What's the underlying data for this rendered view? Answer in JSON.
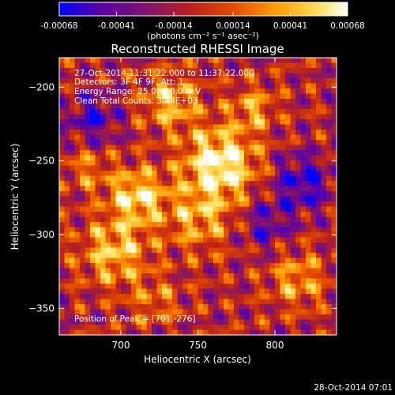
{
  "chart_data": {
    "type": "heatmap",
    "title": "Reconstructed RHESSI Image",
    "xlabel": "Heliocentric X (arcsec)",
    "ylabel": "Heliocentric Y (arcsec)",
    "xlim": [
      660,
      840
    ],
    "ylim": [
      -368,
      -180
    ],
    "xticks": [
      700,
      750,
      800
    ],
    "yticks": [
      -200,
      -250,
      -300,
      -350
    ],
    "colorbar": {
      "range": [
        -0.00068,
        0.00068
      ],
      "tick_values": [
        -0.00068,
        -0.00041,
        -0.00014,
        0.00014,
        0.00041,
        0.00068
      ],
      "tick_labels": [
        "-0.00068",
        "-0.00041",
        "-0.00014",
        "0.00014",
        "0.00041",
        "0.00068"
      ],
      "units": "(photons cm⁻² s⁻¹ asec⁻²)",
      "colormap": [
        "#0000ff",
        "#5a00a8",
        "#7f1470",
        "#b82020",
        "#e24a00",
        "#ff9a00",
        "#ffe060",
        "#ffffff"
      ]
    },
    "annotations": [
      "27-Oct-2014 11:31:22.000 to 11:37:22.000",
      "Detectors: 3F 4F 9F, Att: 1",
      "Energy Range: 25.0 - 50.0 keV",
      "Clean    Total Counts: 3.44E+03",
      "Position of Peak = [701,-276]"
    ],
    "peak": {
      "x": 701,
      "y": -276
    }
  },
  "footer": {
    "timestamp": "28-Oct-2014 07:01"
  }
}
